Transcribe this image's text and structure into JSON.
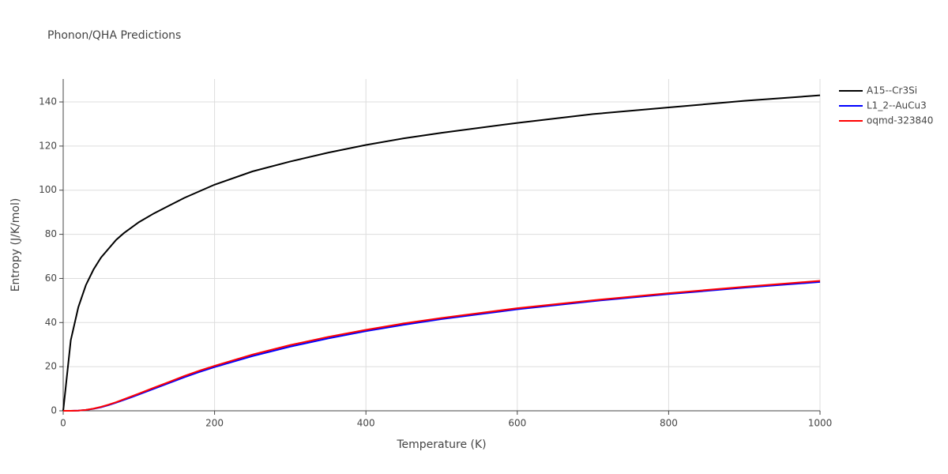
{
  "chart_data": {
    "type": "line",
    "title": "Phonon/QHA Predictions",
    "x_label": "Temperature (K)",
    "y_label": "Entropy (J/K/mol)",
    "x": [
      0,
      10,
      20,
      30,
      40,
      50,
      60,
      70,
      80,
      90,
      100,
      120,
      140,
      160,
      180,
      200,
      250,
      300,
      350,
      400,
      450,
      500,
      600,
      700,
      800,
      900,
      1000
    ],
    "series": [
      {
        "name": "A15--Cr3Si",
        "color": "#000000",
        "values": [
          0,
          32,
          47,
          57,
          64,
          69.5,
          73.5,
          77.5,
          80.5,
          83,
          85.5,
          89.5,
          93,
          96.5,
          99.5,
          102.5,
          108.5,
          113,
          117,
          120.5,
          123.5,
          126,
          130.5,
          134.5,
          137.5,
          140.5,
          143
        ]
      },
      {
        "name": "L1_2--AuCu3",
        "color": "#0000ff",
        "values": [
          0,
          0,
          0.1,
          0.4,
          0.9,
          1.6,
          2.6,
          3.7,
          4.9,
          6.1,
          7.4,
          10,
          12.6,
          15.2,
          17.6,
          19.8,
          24.8,
          29.1,
          32.8,
          36.1,
          39,
          41.6,
          46,
          49.7,
          52.9,
          55.8,
          58.4
        ]
      },
      {
        "name": "oqmd-323840",
        "color": "#ff0000",
        "values": [
          0,
          0,
          0.1,
          0.4,
          1.0,
          1.8,
          2.8,
          3.9,
          5.2,
          6.5,
          7.8,
          10.5,
          13.1,
          15.8,
          18.2,
          20.4,
          25.5,
          29.8,
          33.5,
          36.7,
          39.6,
          42.1,
          46.5,
          50.1,
          53.3,
          56.2,
          58.9
        ]
      }
    ],
    "xlim": [
      0,
      1000
    ],
    "xticks": [
      0,
      200,
      400,
      600,
      800,
      1000
    ],
    "ylim": [
      0,
      150.4
    ],
    "yticks": [
      0,
      20,
      40,
      60,
      80,
      100,
      120,
      140
    ],
    "grid": true,
    "legend": "right"
  }
}
